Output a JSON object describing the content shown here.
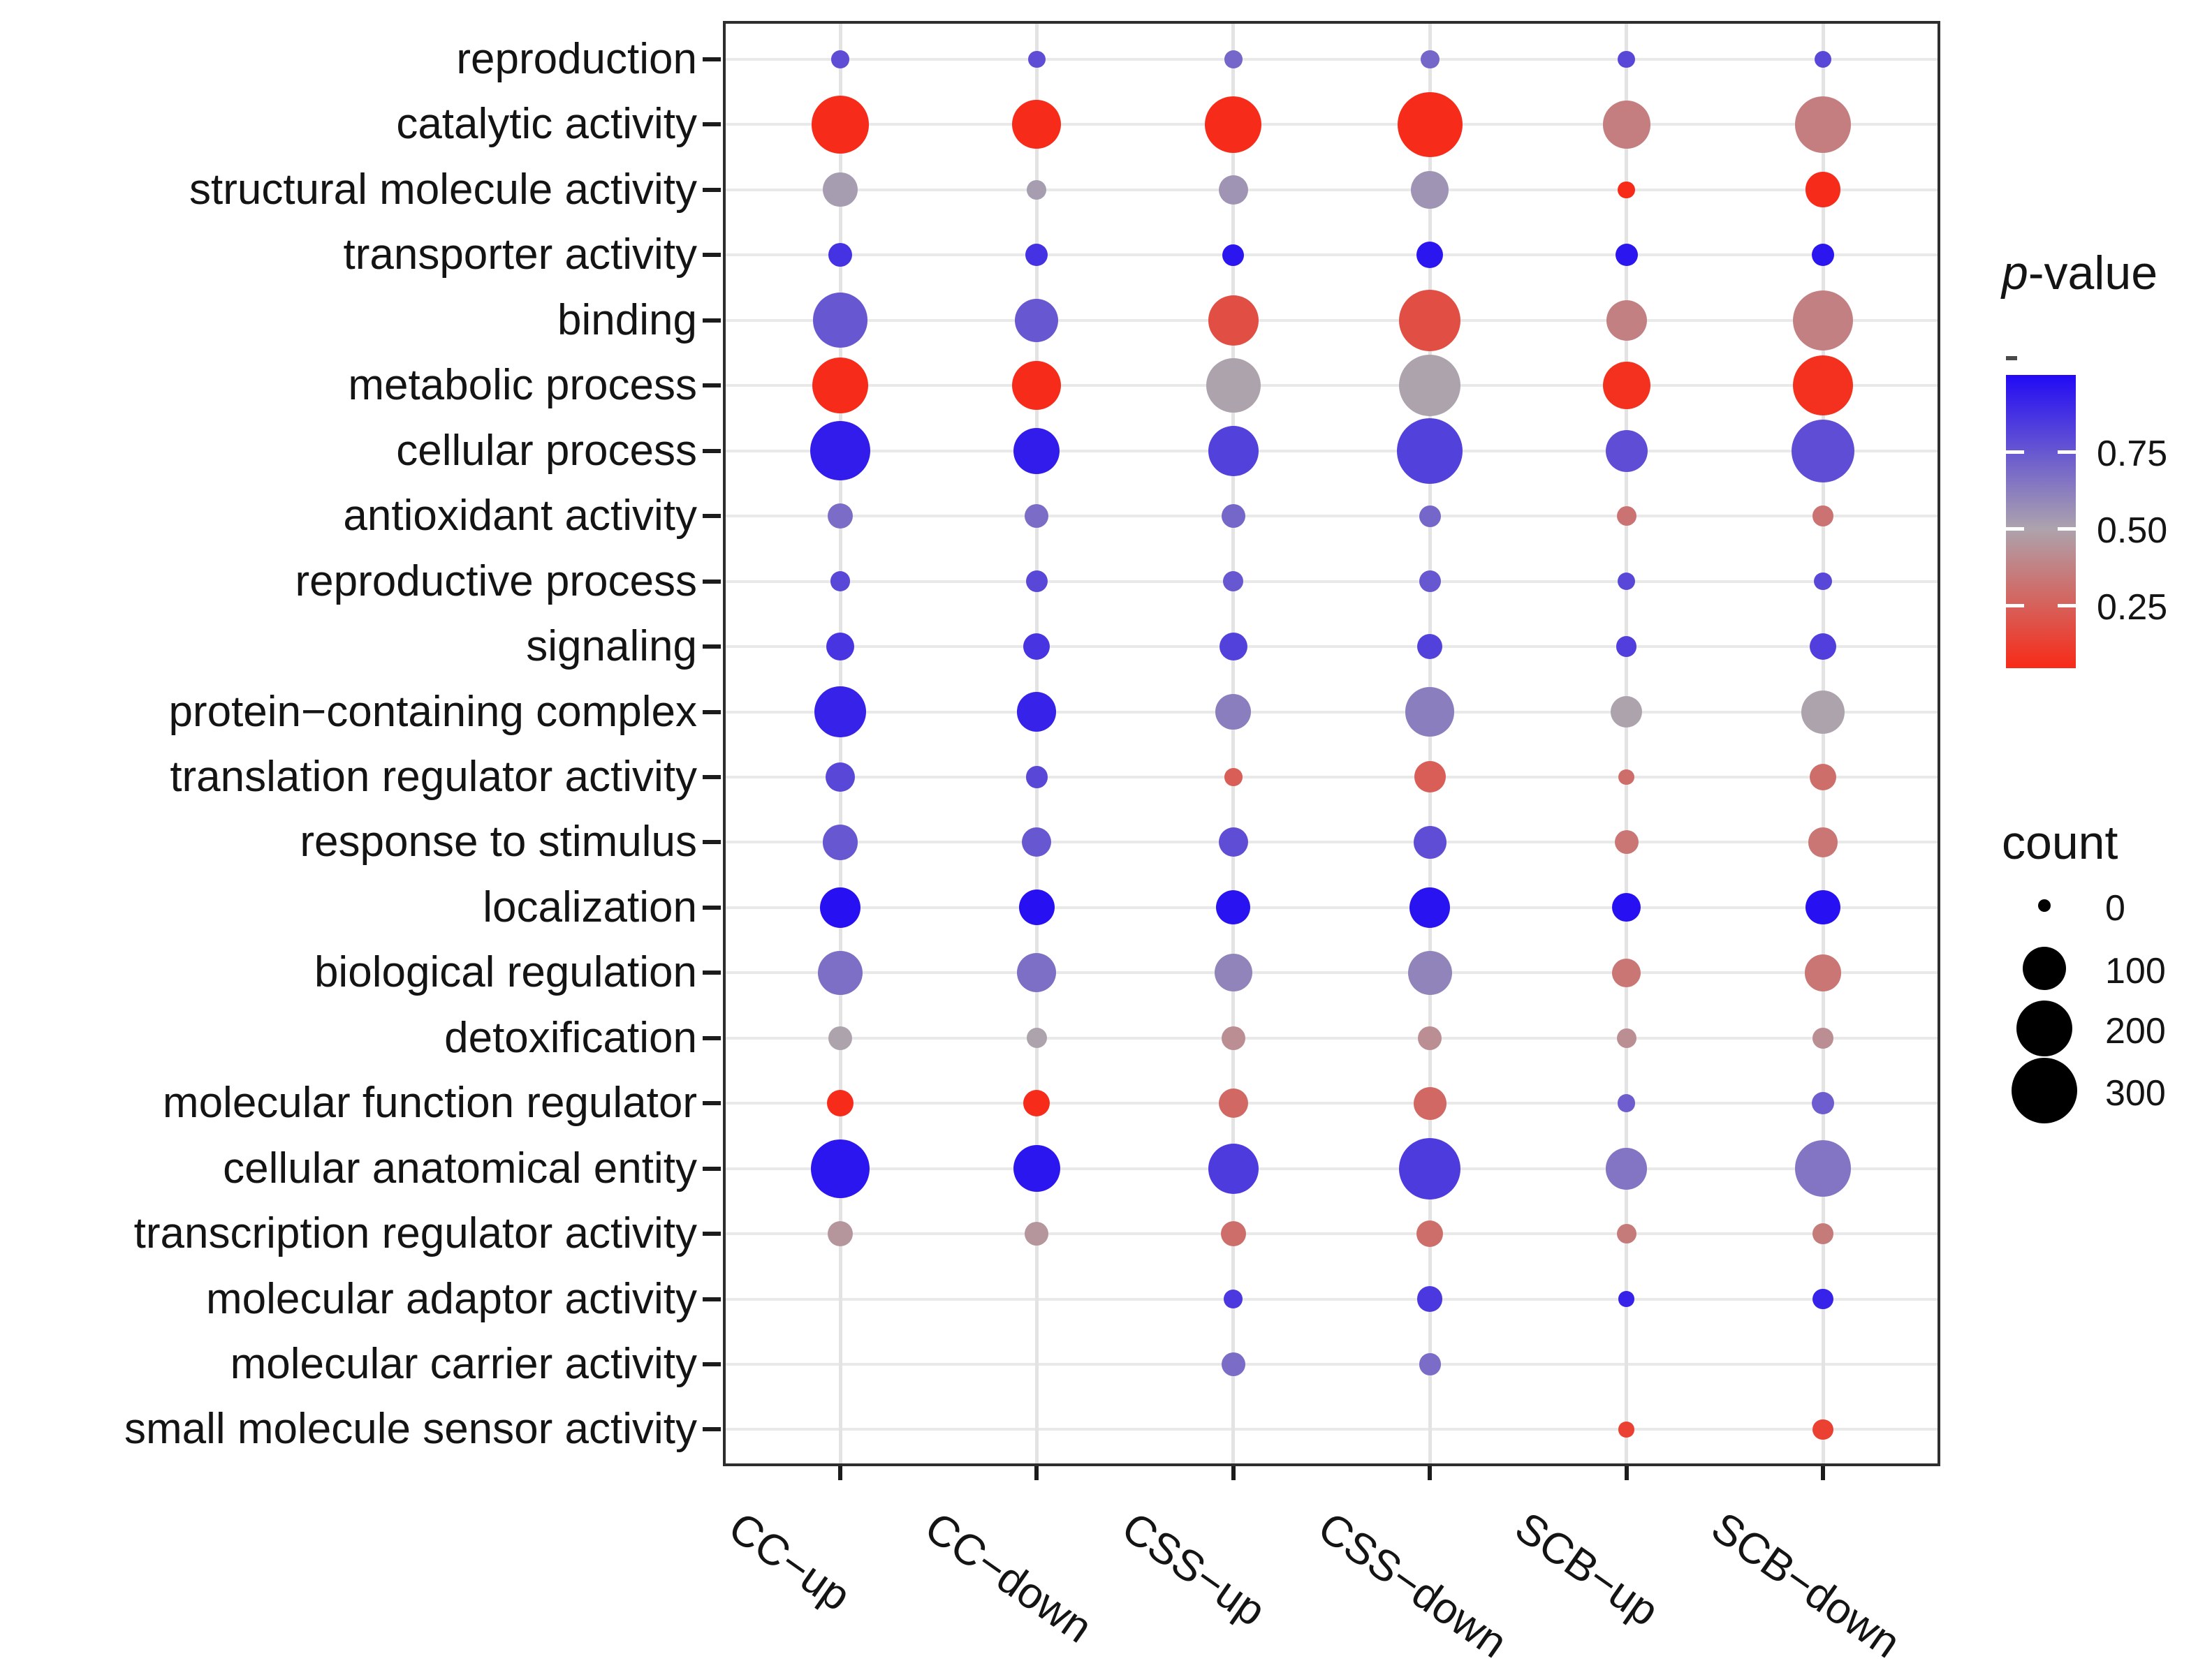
{
  "chart_data": {
    "type": "scatter",
    "subtype": "bubble-matrix",
    "title": "",
    "xlabel": "",
    "ylabel": "",
    "grid": "on",
    "legend_position": "right",
    "x_categories": [
      "CC−up",
      "CC−down",
      "CSS−up",
      "CSS−down",
      "SCB−up",
      "SCB−down"
    ],
    "y_categories": [
      "reproduction",
      "catalytic activity",
      "structural molecule activity",
      "transporter activity",
      "binding",
      "metabolic process",
      "cellular process",
      "antioxidant activity",
      "reproductive process",
      "signaling",
      "protein−containing complex",
      "translation regulator activity",
      "response to stimulus",
      "localization",
      "biological regulation",
      "detoxification",
      "molecular function regulator",
      "cellular anatomical entity",
      "transcription regulator activity",
      "molecular adaptor activity",
      "molecular carrier activity",
      "small molecule sensor activity"
    ],
    "series": [
      {
        "name": "CC−up",
        "counts": [
          3,
          218,
          50,
          13,
          190,
          200,
          235,
          17,
          6,
          25,
          160,
          30,
          56,
          83,
          105,
          13,
          21,
          225,
          17,
          null,
          null,
          null
        ],
        "pvalues": [
          0.78,
          0.05,
          0.52,
          0.87,
          0.75,
          0.05,
          0.94,
          0.68,
          0.8,
          0.86,
          0.92,
          0.8,
          0.75,
          0.98,
          0.67,
          0.5,
          0.05,
          0.96,
          0.45,
          null,
          null,
          null
        ]
      },
      {
        "name": "CC−down",
        "counts": [
          2,
          140,
          5,
          10,
          100,
          140,
          120,
          13,
          9,
          21,
          75,
          9,
          30,
          56,
          75,
          6,
          21,
          125,
          13,
          null,
          null,
          null
        ],
        "pvalues": [
          0.78,
          0.05,
          0.52,
          0.87,
          0.75,
          0.05,
          0.94,
          0.68,
          0.8,
          0.86,
          0.92,
          0.8,
          0.75,
          0.98,
          0.67,
          0.5,
          0.05,
          0.96,
          0.45,
          null,
          null,
          null
        ]
      },
      {
        "name": "CSS−up",
        "counts": [
          3,
          205,
          30,
          9,
          150,
          186,
          150,
          13,
          6,
          25,
          55,
          3,
          30,
          50,
          66,
          13,
          30,
          150,
          17,
          4,
          13,
          null
        ],
        "pvalues": [
          0.7,
          0.05,
          0.55,
          0.96,
          0.18,
          0.5,
          0.82,
          0.7,
          0.75,
          0.82,
          0.62,
          0.24,
          0.78,
          0.97,
          0.6,
          0.42,
          0.28,
          0.84,
          0.3,
          0.85,
          0.68,
          null
        ]
      },
      {
        "name": "CSS−down",
        "counts": [
          4,
          290,
          66,
          21,
          253,
          253,
          300,
          9,
          9,
          17,
          140,
          38,
          43,
          83,
          105,
          13,
          43,
          253,
          21,
          17,
          9,
          null
        ],
        "pvalues": [
          0.7,
          0.05,
          0.55,
          0.96,
          0.18,
          0.5,
          0.82,
          0.7,
          0.75,
          0.82,
          0.62,
          0.24,
          0.78,
          0.97,
          0.6,
          0.42,
          0.28,
          0.84,
          0.3,
          0.85,
          0.68,
          null
        ]
      },
      {
        "name": "SCB−up",
        "counts": [
          2,
          130,
          2,
          10,
          83,
          130,
          91,
          5,
          3,
          7,
          38,
          1,
          13,
          27,
          27,
          5,
          3,
          90,
          5,
          1,
          null,
          1
        ],
        "pvalues": [
          0.8,
          0.36,
          0.05,
          0.96,
          0.37,
          0.07,
          0.78,
          0.32,
          0.8,
          0.83,
          0.5,
          0.3,
          0.33,
          0.98,
          0.33,
          0.42,
          0.73,
          0.65,
          0.35,
          0.92,
          null,
          0.13
        ]
      },
      {
        "name": "SCB−down",
        "counts": [
          2,
          205,
          56,
          10,
          239,
          239,
          267,
          7,
          3,
          21,
          100,
          21,
          32,
          50,
          63,
          7,
          10,
          205,
          7,
          7,
          null,
          7
        ],
        "pvalues": [
          0.8,
          0.36,
          0.05,
          0.96,
          0.37,
          0.07,
          0.78,
          0.32,
          0.8,
          0.83,
          0.5,
          0.3,
          0.33,
          0.98,
          0.33,
          0.42,
          0.73,
          0.65,
          0.35,
          0.92,
          null,
          0.13
        ]
      }
    ],
    "color_scale": {
      "title_italic": "p",
      "title_rest": "-value",
      "tick_labels": [
        "0.75",
        "0.50",
        "0.25"
      ],
      "tick_values": [
        0.75,
        0.5,
        0.25
      ],
      "domain_top": 1.0,
      "domain_bottom": 0.045,
      "low_color": "#ff1e08",
      "mid_color": "#ada3ad",
      "high_color": "#210af5"
    },
    "size_scale": {
      "title": "count",
      "legend_values": [
        0,
        100,
        200,
        300
      ]
    }
  }
}
